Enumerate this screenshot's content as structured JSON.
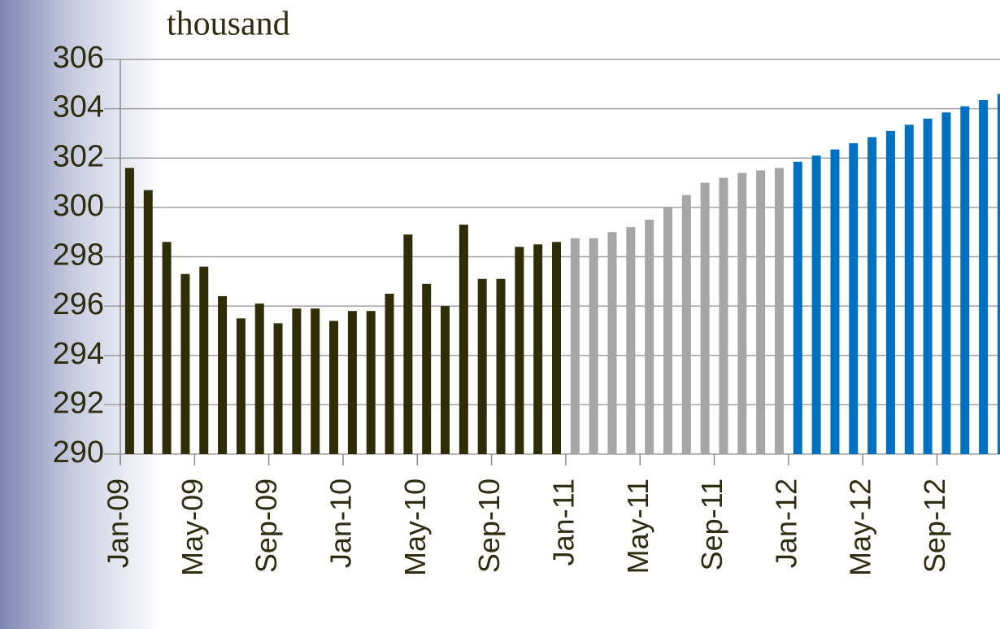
{
  "chart_data": {
    "type": "bar",
    "title": "thousand",
    "categories": [
      "Jan-09",
      null,
      null,
      null,
      "May-09",
      null,
      null,
      null,
      "Sep-09",
      null,
      null,
      null,
      "Jan-10",
      null,
      null,
      null,
      "May-10",
      null,
      null,
      null,
      "Sep-10",
      null,
      null,
      null,
      "Jan-11",
      null,
      null,
      null,
      "May-11",
      null,
      null,
      null,
      "Sep-11",
      null,
      null,
      null,
      "Jan-12",
      null,
      null,
      null,
      "May-12",
      null,
      null,
      null,
      "Sep-12",
      null,
      null,
      null
    ],
    "values": [
      301.6,
      300.7,
      298.6,
      297.3,
      297.6,
      296.4,
      295.5,
      296.1,
      295.3,
      295.9,
      295.9,
      295.4,
      295.8,
      295.8,
      296.5,
      298.9,
      296.9,
      296.0,
      299.3,
      297.1,
      297.1,
      298.4,
      298.5,
      298.6,
      298.75,
      298.75,
      299.0,
      299.2,
      299.5,
      300.0,
      300.5,
      301.0,
      301.2,
      301.4,
      301.5,
      301.6,
      301.85,
      302.1,
      302.35,
      302.6,
      302.85,
      303.1,
      303.35,
      303.6,
      303.85,
      304.1,
      304.35,
      304.6
    ],
    "colors": [
      "#2e2d08",
      "#2e2d08",
      "#2e2d08",
      "#2e2d08",
      "#2e2d08",
      "#2e2d08",
      "#2e2d08",
      "#2e2d08",
      "#2e2d08",
      "#2e2d08",
      "#2e2d08",
      "#2e2d08",
      "#2e2d08",
      "#2e2d08",
      "#2e2d08",
      "#2e2d08",
      "#2e2d08",
      "#2e2d08",
      "#2e2d08",
      "#2e2d08",
      "#2e2d08",
      "#2e2d08",
      "#2e2d08",
      "#2e2d08",
      "#a6a6a6",
      "#a6a6a6",
      "#a6a6a6",
      "#a6a6a6",
      "#a6a6a6",
      "#a6a6a6",
      "#a6a6a6",
      "#a6a6a6",
      "#a6a6a6",
      "#a6a6a6",
      "#a6a6a6",
      "#a6a6a6",
      "#0070c0",
      "#0070c0",
      "#0070c0",
      "#0070c0",
      "#0070c0",
      "#0070c0",
      "#0070c0",
      "#0070c0",
      "#0070c0",
      "#0070c0",
      "#0070c0",
      "#0070c0"
    ],
    "ylim": [
      290,
      306
    ],
    "yticks": [
      290,
      292,
      294,
      296,
      298,
      300,
      302,
      304,
      306
    ],
    "grid": true
  }
}
